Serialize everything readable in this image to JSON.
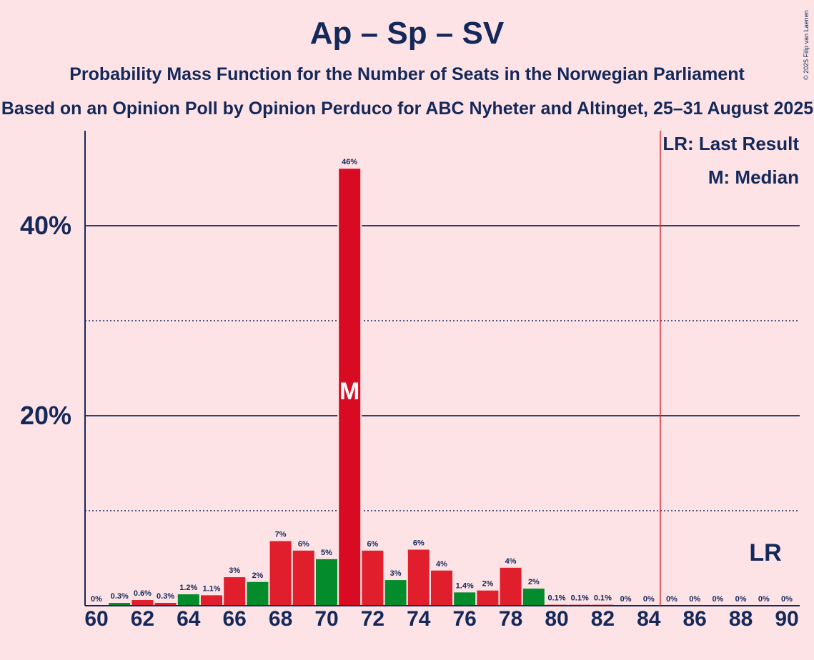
{
  "title": "Ap – Sp – SV",
  "subtitle": "Probability Mass Function for the Number of Seats in the Norwegian Parliament",
  "subtitle2": "Based on an Opinion Poll by Opinion Perduco for ABC Nyheter and Altinget, 25–31 August 2025",
  "copyright": "© 2025 Filip van Laenen",
  "legend": {
    "last_result": "LR: Last Result",
    "median": "M: Median"
  },
  "colors": {
    "background": "#fde3e5",
    "axis": "#14285a",
    "red": "#e01e2c",
    "crimson": "#d90b23",
    "green": "#048c2c",
    "lr_line": "#e0282e"
  },
  "chart_data": {
    "type": "bar",
    "x": [
      60,
      61,
      62,
      63,
      64,
      65,
      66,
      67,
      68,
      69,
      70,
      71,
      72,
      73,
      74,
      75,
      76,
      77,
      78,
      79,
      80,
      81,
      82,
      83,
      84,
      85,
      86,
      87,
      88,
      89,
      90
    ],
    "values": [
      0,
      0.3,
      0.6,
      0.3,
      1.2,
      1.1,
      3,
      2.5,
      6.8,
      5.8,
      4.9,
      46,
      5.8,
      2.7,
      5.9,
      3.7,
      1.4,
      1.6,
      4,
      1.8,
      0.1,
      0.1,
      0.1,
      0,
      0,
      0,
      0,
      0,
      0,
      0,
      0
    ],
    "labels": [
      "0%",
      "0.3%",
      "0.6%",
      "0.3%",
      "1.2%",
      "1.1%",
      "3%",
      "2%",
      "7%",
      "6%",
      "5%",
      "46%",
      "6%",
      "3%",
      "6%",
      "4%",
      "1.4%",
      "2%",
      "4%",
      "2%",
      "0.1%",
      "0.1%",
      "0.1%",
      "0%",
      "0%",
      "0%",
      "0%",
      "0%",
      "0%",
      "0%",
      "0%"
    ],
    "colors": [
      "red",
      "green",
      "red",
      "red",
      "green",
      "red",
      "red",
      "green",
      "red",
      "red",
      "green",
      "crimson",
      "red",
      "green",
      "red",
      "red",
      "green",
      "red",
      "red",
      "green",
      "red",
      "red",
      "red",
      "red",
      "red",
      "red",
      "red",
      "red",
      "red",
      "red",
      "red"
    ],
    "xticks": [
      60,
      62,
      64,
      66,
      68,
      70,
      72,
      74,
      76,
      78,
      80,
      82,
      84,
      86,
      88,
      90
    ],
    "yticks_major": [
      20,
      40
    ],
    "yticks_major_labels": [
      "20%",
      "40%"
    ],
    "yticks_minor": [
      10,
      30
    ],
    "ylim": [
      0,
      50
    ],
    "median": 71,
    "median_label": "M",
    "last_result": 85,
    "last_result_label": "LR"
  }
}
